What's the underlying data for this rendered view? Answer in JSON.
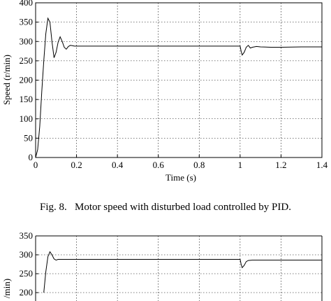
{
  "chart_data": [
    {
      "type": "line",
      "title": "",
      "xlabel": "Time (s)",
      "ylabel": "Speed (r/min)",
      "xlim": [
        0,
        1.4
      ],
      "ylim": [
        0,
        400
      ],
      "xticks": [
        "0",
        "0.2",
        "0.4",
        "0.6",
        "0.8",
        "1",
        "1.2",
        "1.4"
      ],
      "yticks": [
        "0",
        "50",
        "100",
        "150",
        "200",
        "250",
        "300",
        "350",
        "400"
      ],
      "grid": true,
      "line_color": "#000000",
      "series": [
        {
          "x": [
            0,
            0.01,
            0.02,
            0.03,
            0.04,
            0.05,
            0.06,
            0.07,
            0.08,
            0.09,
            0.1,
            0.11,
            0.12,
            0.13,
            0.14,
            0.15,
            0.16,
            0.17,
            0.18,
            0.19,
            0.2,
            0.3,
            0.4,
            0.5,
            0.6,
            0.7,
            0.8,
            0.9,
            0.995,
            1.0,
            1.005,
            1.01,
            1.02,
            1.03,
            1.04,
            1.05,
            1.06,
            1.08,
            1.1,
            1.15,
            1.2,
            1.3,
            1.4
          ],
          "y": [
            0,
            20,
            80,
            170,
            250,
            320,
            360,
            350,
            300,
            258,
            272,
            298,
            312,
            300,
            285,
            280,
            287,
            290,
            289,
            288,
            288,
            288,
            288,
            288,
            288,
            288,
            288,
            288,
            288,
            288,
            275,
            265,
            272,
            285,
            290,
            283,
            285,
            287,
            286,
            285,
            285,
            286,
            286
          ]
        }
      ]
    },
    {
      "type": "line",
      "title": "",
      "xlabel": "",
      "ylabel": "/min)",
      "ylim": [
        200,
        350
      ],
      "yticks": [
        "200",
        "250",
        "300",
        "350"
      ],
      "grid": true,
      "line_color": "#000000",
      "series": [
        {
          "x": [
            0.04,
            0.05,
            0.06,
            0.07,
            0.08,
            0.09,
            0.1,
            0.11,
            0.12,
            0.2,
            0.4,
            0.6,
            0.8,
            0.995,
            1.0,
            1.005,
            1.01,
            1.02,
            1.03,
            1.04,
            1.06,
            1.1,
            1.2,
            1.3,
            1.4
          ],
          "y": [
            200,
            255,
            295,
            308,
            300,
            289,
            286,
            288,
            288,
            288,
            288,
            288,
            288,
            288,
            288,
            275,
            266,
            272,
            282,
            285,
            286,
            286,
            286,
            286,
            286
          ]
        }
      ]
    }
  ],
  "caption": "Fig. 8.   Motor speed with disturbed load controlled by PID."
}
